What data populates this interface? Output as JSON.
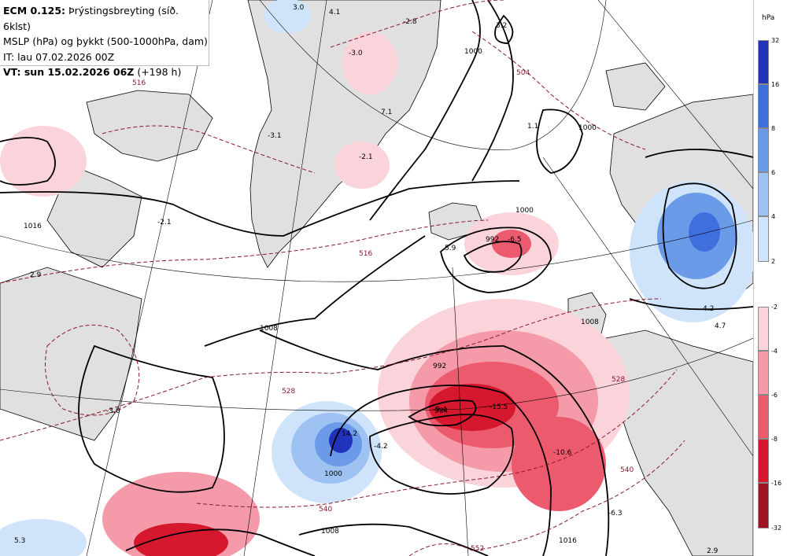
{
  "header": {
    "line1_bold": "ECM 0.125:",
    "line1_rest": " Þrýstingsbreyting (síð. 6klst)",
    "line2": "MSLP (hPa) og þykkt (500-1000hPa, dam)",
    "line3": "IT: lau 07.02.2026 00Z",
    "line4_bold": "VT: sun 15.02.2026 06Z",
    "line4_rest": " (+198 h)"
  },
  "legend": {
    "unit": "hPa",
    "positive_ticks": [
      "32",
      "16",
      "8",
      "6",
      "4",
      "2"
    ],
    "positive_colors": [
      "#2233bb",
      "#3f6fdd",
      "#6b9ae8",
      "#9ec3f2",
      "#cfe4fb"
    ],
    "negative_ticks": [
      "-2",
      "-4",
      "-6",
      "-8",
      "-16",
      "-32"
    ],
    "negative_colors": [
      "#fbd3da",
      "#f59aa9",
      "#ec5a6e",
      "#d6182e",
      "#9c1422"
    ]
  },
  "map": {
    "land_color": "#e0e0e0",
    "isobar_labels": [
      "1008",
      "1000",
      "992",
      "1016",
      "1000",
      "1000",
      "992",
      "984",
      "1000",
      "1008",
      "1008",
      "1016"
    ],
    "thickness_labels": [
      "516",
      "528",
      "540",
      "528",
      "540",
      "552",
      "504",
      "516"
    ],
    "pressure_change_labels": [
      "3.0",
      "4.1",
      "-2.8",
      "3.2",
      "-3.0",
      "1.1",
      "-3.1",
      "7.1",
      "-2.1",
      "-2.1",
      "2.9",
      "-6.5",
      "5.9",
      "4.2",
      "4.7",
      "-3.0",
      "14.2",
      "-4.2",
      "-9.4",
      "-15.5",
      "-10.6",
      "-6.3",
      "5.3",
      "2.9"
    ]
  }
}
